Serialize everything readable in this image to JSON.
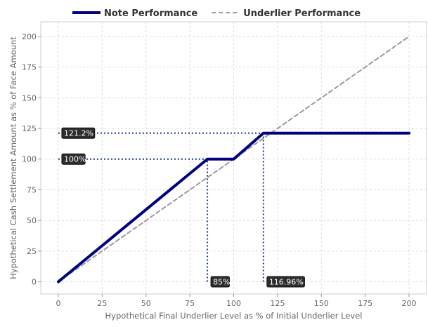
{
  "chart_data": {
    "type": "line",
    "xlabel": "Hypothetical Final Underlier Level as % of Initial Underlier Level",
    "ylabel": "Hypothetical Cash Settlement Amount as % of Face Amount",
    "xlim": [
      -10,
      210
    ],
    "ylim": [
      -10,
      212
    ],
    "xticks": [
      0,
      25,
      50,
      75,
      100,
      125,
      150,
      175,
      200
    ],
    "yticks": [
      0,
      25,
      50,
      75,
      100,
      125,
      150,
      175,
      200
    ],
    "grid": true,
    "legend_position": "top-center",
    "series": [
      {
        "name": "Note Performance",
        "color": "#000080",
        "style": "solid",
        "x": [
          0,
          85,
          100,
          116.96,
          200
        ],
        "y": [
          0,
          100,
          100,
          121.2,
          121.2
        ]
      },
      {
        "name": "Underlier Performance",
        "color": "#9a9aa2",
        "style": "dashed",
        "x": [
          0,
          200
        ],
        "y": [
          0,
          200
        ]
      }
    ],
    "reference_lines": [
      {
        "x1": 0,
        "y1": 121.2,
        "x2": 116.96,
        "y2": 121.2
      },
      {
        "x1": 0,
        "y1": 100,
        "x2": 85,
        "y2": 100
      },
      {
        "x1": 85,
        "y1": 0,
        "x2": 85,
        "y2": 100
      },
      {
        "x1": 116.96,
        "y1": 0,
        "x2": 116.96,
        "y2": 121.2
      }
    ],
    "annotations": [
      {
        "label": "121.2%",
        "x": 0,
        "y": 121.2
      },
      {
        "label": "100%",
        "x": 0,
        "y": 100
      },
      {
        "label": "85%",
        "x": 85,
        "y": 0
      },
      {
        "label": "116.96%",
        "x": 116.96,
        "y": 0
      }
    ]
  }
}
